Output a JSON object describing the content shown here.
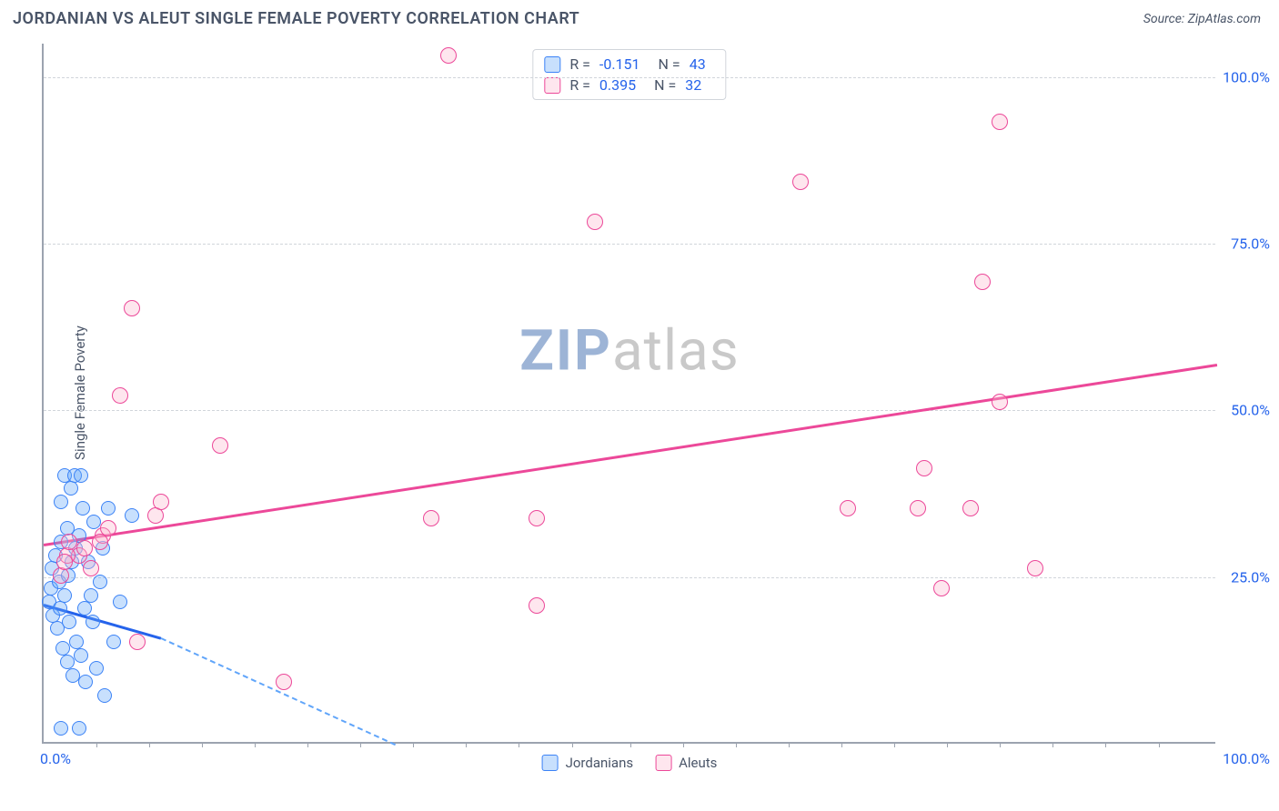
{
  "header": {
    "title": "JORDANIAN VS ALEUT SINGLE FEMALE POVERTY CORRELATION CHART",
    "source": "Source: ZipAtlas.com"
  },
  "watermark": {
    "part1": "ZIP",
    "part2": "atlas"
  },
  "chart": {
    "type": "scatter",
    "y_label": "Single Female Poverty",
    "xlim": [
      0,
      100
    ],
    "ylim": [
      0,
      105
    ],
    "y_ticks": [
      25,
      50,
      75,
      100
    ],
    "y_tick_labels": [
      "25.0%",
      "50.0%",
      "75.0%",
      "100.0%"
    ],
    "x_tick_label_left": "0.0%",
    "x_tick_label_right": "100.0%",
    "x_minor_ticks": [
      4.5,
      9,
      13.5,
      18,
      22.5,
      27,
      31.5,
      36,
      40.5,
      45,
      50,
      54.5,
      59,
      63.5,
      68,
      72.5,
      77,
      81.5,
      86,
      90.5,
      95
    ],
    "grid_color": "#d1d5db",
    "axis_color": "#9ca3af",
    "background_color": "#ffffff",
    "series": [
      {
        "name": "Jordanians",
        "fill_color": "rgba(96,165,250,0.35)",
        "stroke_color": "#3b82f6",
        "marker_size": 16,
        "trend": {
          "x1": 0,
          "y1": 21,
          "x2": 10,
          "y2": 16,
          "color": "#2563eb",
          "width": 3
        },
        "trend_dashed_ext": {
          "x1": 10,
          "y1": 16,
          "x2": 30,
          "y2": 0,
          "color": "#60a5fa"
        },
        "points": [
          [
            0.5,
            21
          ],
          [
            0.6,
            23
          ],
          [
            0.7,
            26
          ],
          [
            0.8,
            19
          ],
          [
            1.0,
            28
          ],
          [
            1.2,
            17
          ],
          [
            1.3,
            24
          ],
          [
            1.4,
            20
          ],
          [
            1.5,
            30
          ],
          [
            1.5,
            36
          ],
          [
            1.6,
            14
          ],
          [
            1.8,
            22
          ],
          [
            2.0,
            32
          ],
          [
            2.0,
            12
          ],
          [
            2.1,
            25
          ],
          [
            2.2,
            18
          ],
          [
            2.3,
            38
          ],
          [
            2.4,
            27
          ],
          [
            2.5,
            10
          ],
          [
            2.7,
            29
          ],
          [
            2.8,
            15
          ],
          [
            3.0,
            31
          ],
          [
            3.2,
            13
          ],
          [
            3.3,
            35
          ],
          [
            3.5,
            20
          ],
          [
            3.6,
            9
          ],
          [
            3.8,
            27
          ],
          [
            4.0,
            22
          ],
          [
            4.2,
            18
          ],
          [
            4.3,
            33
          ],
          [
            4.5,
            11
          ],
          [
            4.8,
            24
          ],
          [
            5.0,
            29
          ],
          [
            5.2,
            7
          ],
          [
            5.5,
            35
          ],
          [
            6.0,
            15
          ],
          [
            6.5,
            21
          ],
          [
            3.0,
            2
          ],
          [
            1.5,
            2
          ],
          [
            7.5,
            34
          ],
          [
            1.8,
            40
          ],
          [
            2.6,
            40
          ],
          [
            3.2,
            40
          ]
        ]
      },
      {
        "name": "Aleuts",
        "fill_color": "rgba(251,182,206,0.35)",
        "stroke_color": "#ec4899",
        "marker_size": 18,
        "trend": {
          "x1": 0,
          "y1": 30,
          "x2": 100,
          "y2": 57,
          "color": "#ec4899",
          "width": 2.5
        },
        "points": [
          [
            7.5,
            65
          ],
          [
            6.5,
            52
          ],
          [
            5,
            31
          ],
          [
            3,
            28
          ],
          [
            2,
            28
          ],
          [
            5.5,
            32
          ],
          [
            9.5,
            34
          ],
          [
            10,
            36
          ],
          [
            15,
            44.5
          ],
          [
            8,
            15
          ],
          [
            20.5,
            9
          ],
          [
            33,
            33.5
          ],
          [
            34.5,
            103
          ],
          [
            42,
            20.5
          ],
          [
            47,
            78
          ],
          [
            42,
            33.5
          ],
          [
            64.5,
            84
          ],
          [
            75,
            41
          ],
          [
            74.5,
            35
          ],
          [
            68.5,
            35
          ],
          [
            76.5,
            23
          ],
          [
            79,
            35
          ],
          [
            81.5,
            51
          ],
          [
            80,
            69
          ],
          [
            84.5,
            26
          ],
          [
            81.5,
            93
          ],
          [
            1.5,
            25
          ],
          [
            1.8,
            27
          ],
          [
            2.2,
            30
          ],
          [
            3.5,
            29
          ],
          [
            4,
            26
          ],
          [
            4.8,
            30
          ]
        ]
      }
    ],
    "stats": [
      {
        "swatch_fill": "rgba(96,165,250,0.35)",
        "swatch_stroke": "#3b82f6",
        "r_label": "R =",
        "r_val": "-0.151",
        "n_label": "N =",
        "n_val": "43"
      },
      {
        "swatch_fill": "rgba(251,182,206,0.35)",
        "swatch_stroke": "#ec4899",
        "r_label": "R =",
        "r_val": "0.395",
        "n_label": "N =",
        "n_val": "32"
      }
    ],
    "legend": [
      {
        "swatch_fill": "rgba(96,165,250,0.35)",
        "swatch_stroke": "#3b82f6",
        "label": "Jordanians"
      },
      {
        "swatch_fill": "rgba(251,182,206,0.35)",
        "swatch_stroke": "#ec4899",
        "label": "Aleuts"
      }
    ]
  }
}
